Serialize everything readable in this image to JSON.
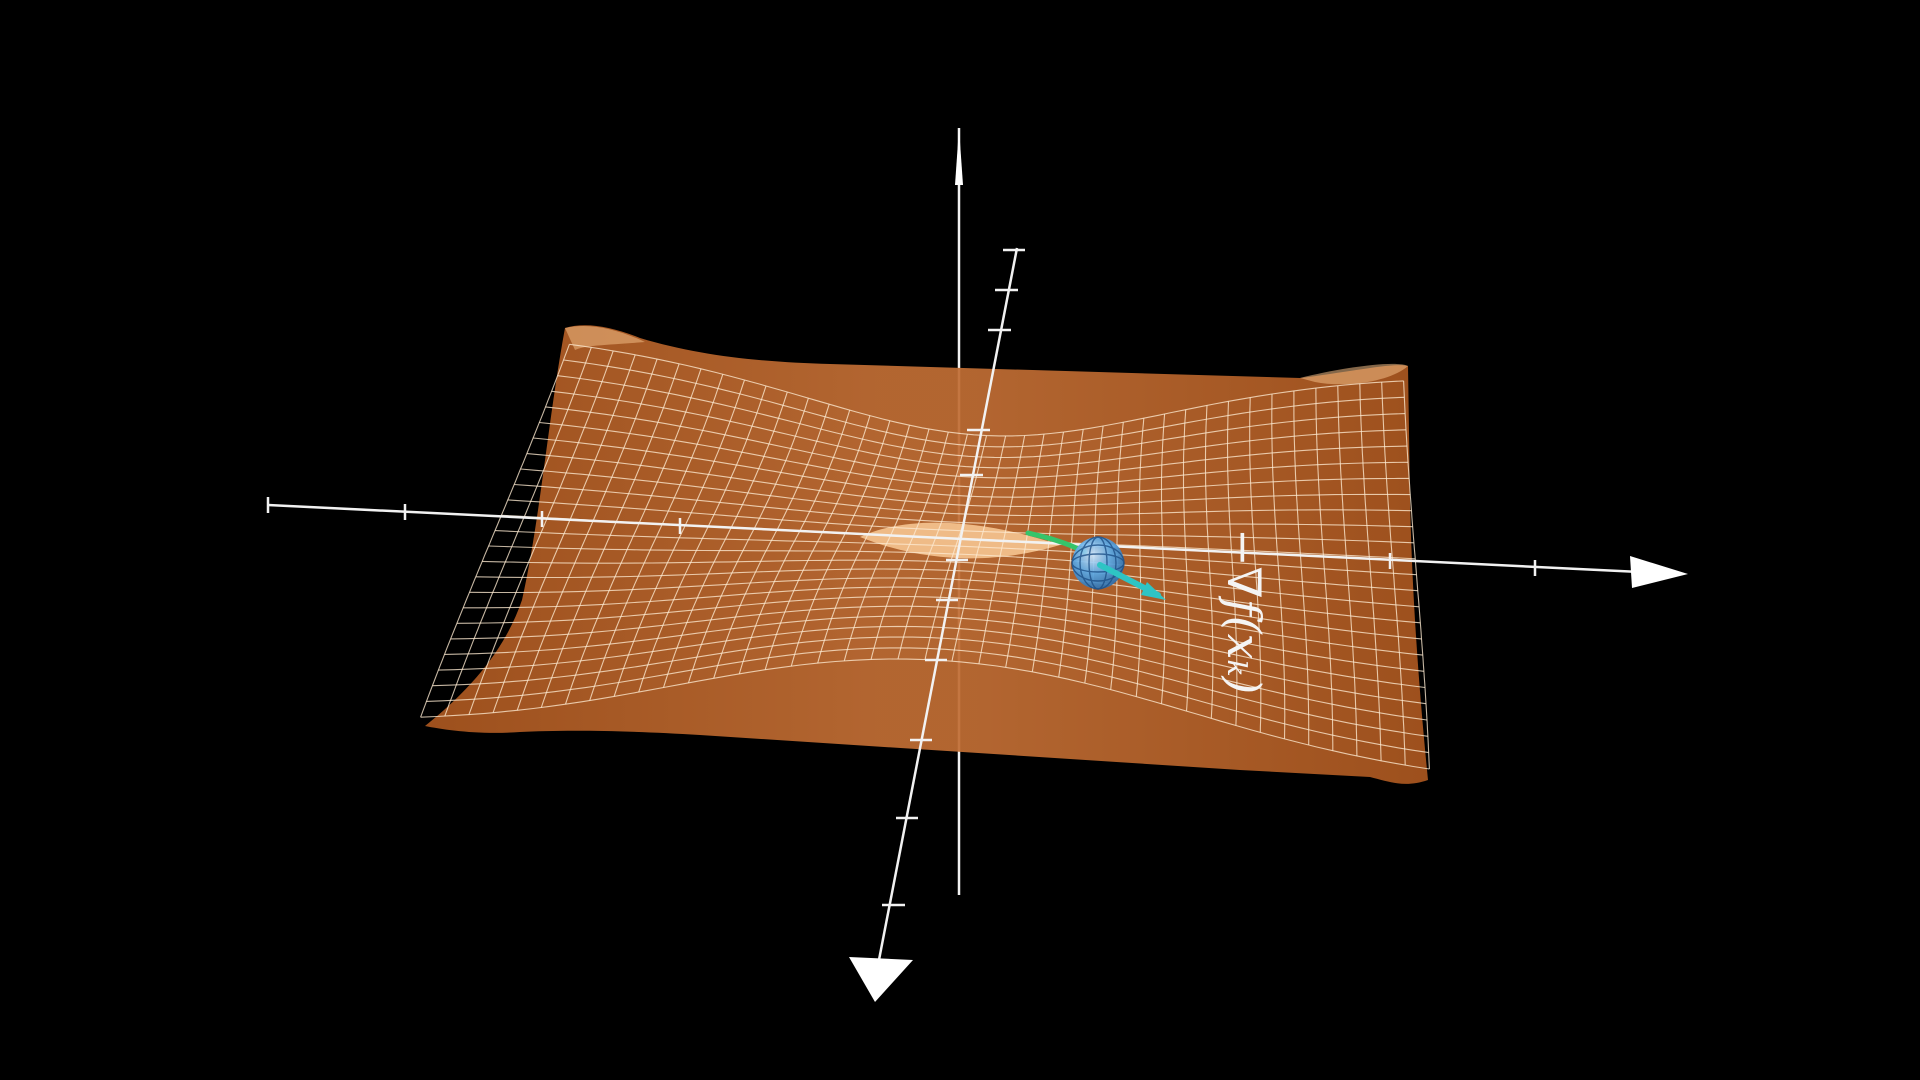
{
  "scene": {
    "background": "#000000",
    "surface_color": "#b5602a",
    "surface_highlight": "#f2c08c",
    "grid_color": "#fde9cf",
    "axis_color": "#f2f2f2",
    "point_color": "#5aa9e6",
    "arrow_color": "#2ec4c4",
    "path_color": "#35c46a"
  },
  "annotation": {
    "gradient_label": "−∇f(xₖ)"
  },
  "icons": {
    "point": "wireframe-sphere",
    "arrows": "triangle-arrowhead"
  }
}
